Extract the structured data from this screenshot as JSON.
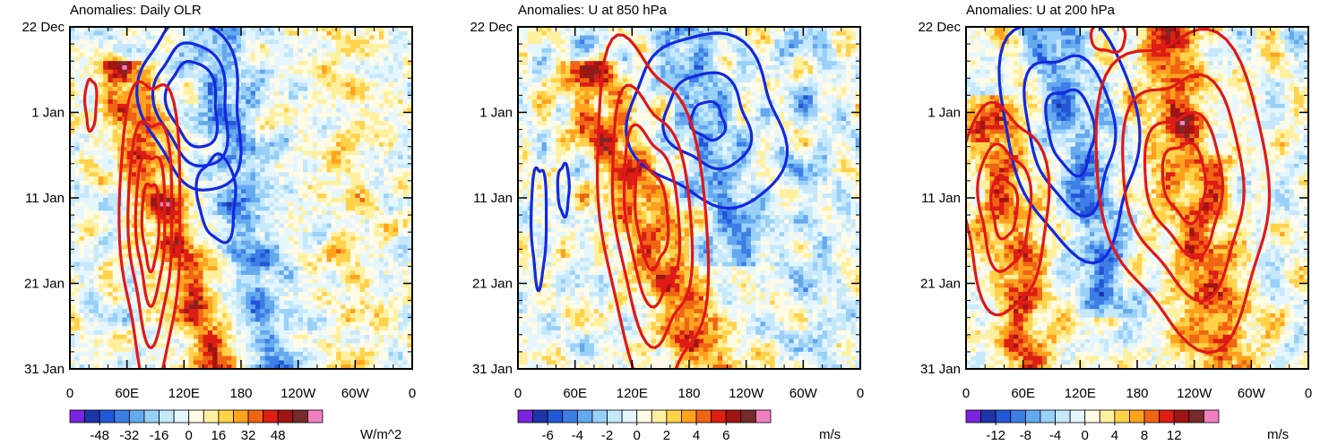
{
  "figure_description": "Time-longitude Hovmoller panels of anomalies, 22 Dec to 31 Jan",
  "chart_data": [
    {
      "type": "heatmap",
      "title": "Anomalies: Daily OLR",
      "x_tick_labels": [
        "0",
        "60E",
        "120E",
        "180",
        "120W",
        "60W",
        "0"
      ],
      "y_tick_labels": [
        "22 Dec",
        "1 Jan",
        "11 Jan",
        "21 Jan",
        "31 Jan"
      ],
      "xlim": [
        0,
        360
      ],
      "ylim_days": [
        0,
        40
      ],
      "colorbar": {
        "units": "W/m^2",
        "tick_labels": [
          "-48",
          "-32",
          "-16",
          "0",
          "16",
          "32",
          "48"
        ],
        "levels_min": -56,
        "levels_max": 56,
        "level_step": 8,
        "colors": [
          "#7a24e0",
          "#1c34a8",
          "#2456d8",
          "#3c7ee6",
          "#64a8ee",
          "#98d0f8",
          "#c6e8fb",
          "#e6f6fe",
          "#fffbe6",
          "#fff0a0",
          "#ffd24a",
          "#ffa21e",
          "#f06414",
          "#dc1e14",
          "#a01414",
          "#782a2a",
          "#f080c0"
        ]
      },
      "field_seed": 11,
      "bands": [
        {
          "lon0": 58,
          "lon1": 158,
          "day0": 8,
          "day1": 40,
          "width": 44,
          "amp": 38
        },
        {
          "lon0": 150,
          "lon1": 210,
          "day0": 0,
          "day1": 40,
          "width": 48,
          "amp": -26
        },
        {
          "lon0": 290,
          "lon1": 300,
          "day0": 0,
          "day1": 40,
          "width": 40,
          "amp": 10
        }
      ],
      "contours": [
        {
          "color": "blue",
          "lon0": 130,
          "day0": 9,
          "rx": 52,
          "rd": 10,
          "rot": 0.55,
          "levels": [
            1,
            0.72,
            0.5
          ]
        },
        {
          "color": "blue",
          "lon0": 155,
          "day0": 20,
          "rx": 20,
          "rd": 5,
          "rot": 0.3,
          "levels": [
            1
          ]
        },
        {
          "color": "red",
          "lon0": 85,
          "day0": 23,
          "rx": 32,
          "rd": 18,
          "rot": 0.1,
          "levels": [
            1,
            0.72,
            0.48,
            0.28
          ]
        },
        {
          "color": "red",
          "lon0": 22,
          "day0": 9,
          "rx": 6,
          "rd": 3,
          "rot": 0,
          "levels": [
            1
          ]
        }
      ]
    },
    {
      "type": "heatmap",
      "title": "Anomalies: U at 850 hPa",
      "x_tick_labels": [
        "0",
        "60E",
        "120E",
        "180",
        "120W",
        "60W",
        "0"
      ],
      "y_tick_labels": [
        "22 Dec",
        "1 Jan",
        "11 Jan",
        "21 Jan",
        "31 Jan"
      ],
      "xlim": [
        0,
        360
      ],
      "ylim_days": [
        0,
        40
      ],
      "colorbar": {
        "units": "m/s",
        "tick_labels": [
          "-6",
          "-4",
          "-2",
          "0",
          "2",
          "4",
          "6"
        ],
        "levels_min": -7,
        "levels_max": 7,
        "level_step": 1,
        "colors": [
          "#7a24e0",
          "#1c34a8",
          "#2456d8",
          "#3c7ee6",
          "#64a8ee",
          "#98d0f8",
          "#c6e8fb",
          "#e6f6fe",
          "#fffbe6",
          "#fff0a0",
          "#ffd24a",
          "#ffa21e",
          "#f06414",
          "#dc1e14",
          "#a01414",
          "#782a2a",
          "#f080c0"
        ]
      },
      "field_seed": 23,
      "bands": [
        {
          "lon0": 80,
          "lon1": 200,
          "day0": 8,
          "day1": 40,
          "width": 50,
          "amp": 4.5
        },
        {
          "lon0": 170,
          "lon1": 230,
          "day0": 0,
          "day1": 24,
          "width": 50,
          "amp": -3.2
        },
        {
          "lon0": 300,
          "lon1": 320,
          "day0": 0,
          "day1": 40,
          "width": 40,
          "amp": -1.2
        }
      ],
      "contours": [
        {
          "color": "blue",
          "lon0": 200,
          "day0": 11,
          "rx": 80,
          "rd": 10,
          "rot": 0.45,
          "levels": [
            1,
            0.55,
            0.22
          ]
        },
        {
          "color": "red",
          "lon0": 140,
          "day0": 22,
          "rx": 56,
          "rd": 20,
          "rot": 0.85,
          "levels": [
            1,
            0.72,
            0.5,
            0.3
          ]
        },
        {
          "color": "blue",
          "lon0": 22,
          "day0": 23,
          "rx": 8,
          "rd": 7,
          "rot": 0,
          "levels": [
            1
          ]
        },
        {
          "color": "blue",
          "lon0": 48,
          "day0": 19,
          "rx": 6,
          "rd": 3,
          "rot": 0,
          "levels": [
            1
          ]
        }
      ]
    },
    {
      "type": "heatmap",
      "title": "Anomalies: U at 200 hPa",
      "x_tick_labels": [
        "0",
        "60E",
        "120E",
        "180",
        "120W",
        "60W",
        "0"
      ],
      "y_tick_labels": [
        "22 Dec",
        "1 Jan",
        "11 Jan",
        "21 Jan",
        "31 Jan"
      ],
      "xlim": [
        0,
        360
      ],
      "ylim_days": [
        0,
        40
      ],
      "colorbar": {
        "units": "m/s",
        "tick_labels": [
          "-12",
          "-8",
          "-4",
          "0",
          "4",
          "8",
          "12"
        ],
        "levels_min": -14,
        "levels_max": 14,
        "level_step": 2,
        "colors": [
          "#7a24e0",
          "#1c34a8",
          "#2456d8",
          "#3c7ee6",
          "#64a8ee",
          "#98d0f8",
          "#c6e8fb",
          "#e6f6fe",
          "#fffbe6",
          "#fff0a0",
          "#ffd24a",
          "#ffa21e",
          "#f06414",
          "#dc1e14",
          "#a01414",
          "#782a2a",
          "#f080c0"
        ]
      },
      "field_seed": 37,
      "bands": [
        {
          "lon0": 30,
          "lon1": 70,
          "day0": 12,
          "day1": 40,
          "width": 44,
          "amp": 9
        },
        {
          "lon0": 205,
          "lon1": 270,
          "day0": 0,
          "day1": 40,
          "width": 55,
          "amp": 9
        },
        {
          "lon0": 95,
          "lon1": 150,
          "day0": 0,
          "day1": 30,
          "width": 44,
          "amp": -7
        }
      ],
      "contours": [
        {
          "color": "blue",
          "lon0": 110,
          "day0": 12,
          "rx": 70,
          "rd": 14,
          "rot": 0.6,
          "levels": [
            1,
            0.65,
            0.35
          ]
        },
        {
          "color": "red",
          "lon0": 230,
          "day0": 18,
          "rx": 90,
          "rd": 18,
          "rot": 0.4,
          "levels": [
            1,
            0.7,
            0.45,
            0.25
          ]
        },
        {
          "color": "red",
          "lon0": 40,
          "day0": 21,
          "rx": 45,
          "rd": 12,
          "rot": 0.3,
          "levels": [
            1,
            0.6,
            0.3
          ]
        },
        {
          "color": "red",
          "lon0": 150,
          "day0": 1,
          "rx": 18,
          "rd": 2,
          "rot": 0,
          "levels": [
            1
          ]
        }
      ]
    }
  ]
}
